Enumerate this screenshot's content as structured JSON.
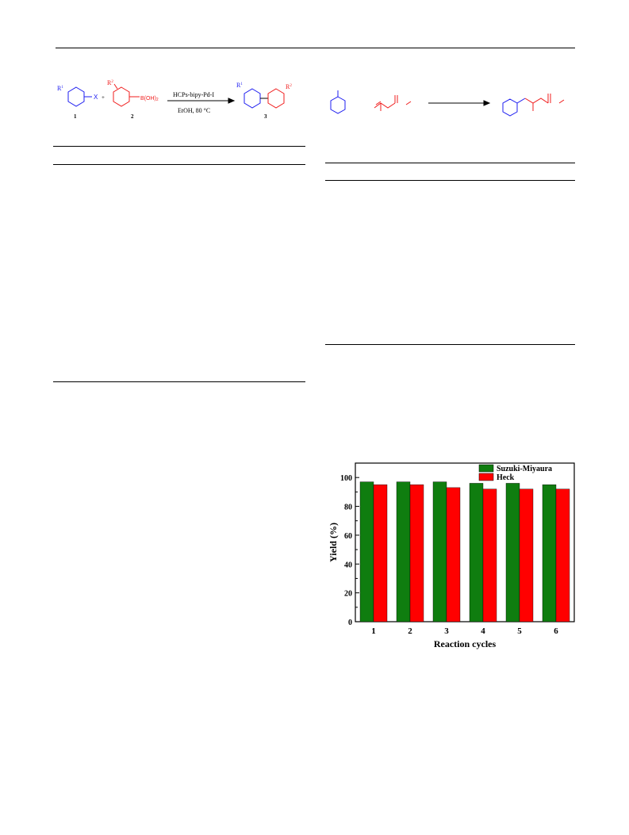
{
  "scheme1": {
    "r1": "R",
    "r1_sup": "1",
    "x": "X",
    "plus": "+",
    "r2": "R",
    "r2_sup": "2",
    "boronic": "B(OH)",
    "boronic_sub": "2",
    "catalyst": "HCPs-bipy-Pd-I",
    "conditions": "EtOH, 80 °C",
    "r1_product": "R",
    "r1_product_sup": "1",
    "r2_product": "R",
    "r2_product_sup": "2",
    "label_1": "1",
    "label_2": "2",
    "label_3": "3"
  },
  "colors": {
    "blue": "#1c1cf0",
    "red": "#f01c1c",
    "green": "#0f7d0f",
    "bar_red": "#ff0000"
  },
  "chart_data": {
    "type": "bar",
    "categories": [
      "1",
      "2",
      "3",
      "4",
      "5",
      "6"
    ],
    "series": [
      {
        "name": "Suzuki-Miyaura",
        "values": [
          97,
          97,
          97,
          96,
          96,
          95
        ],
        "color": "#0f7d0f"
      },
      {
        "name": "Heck",
        "values": [
          95,
          95,
          93,
          92,
          92,
          92
        ],
        "color": "#ff0000"
      }
    ],
    "xlabel": "Reaction cycles",
    "ylabel": "Yield (%)",
    "ylim": [
      0,
      110
    ],
    "yticks": [
      0,
      20,
      40,
      60,
      80,
      100
    ],
    "legend": "top-right",
    "grid": false
  }
}
